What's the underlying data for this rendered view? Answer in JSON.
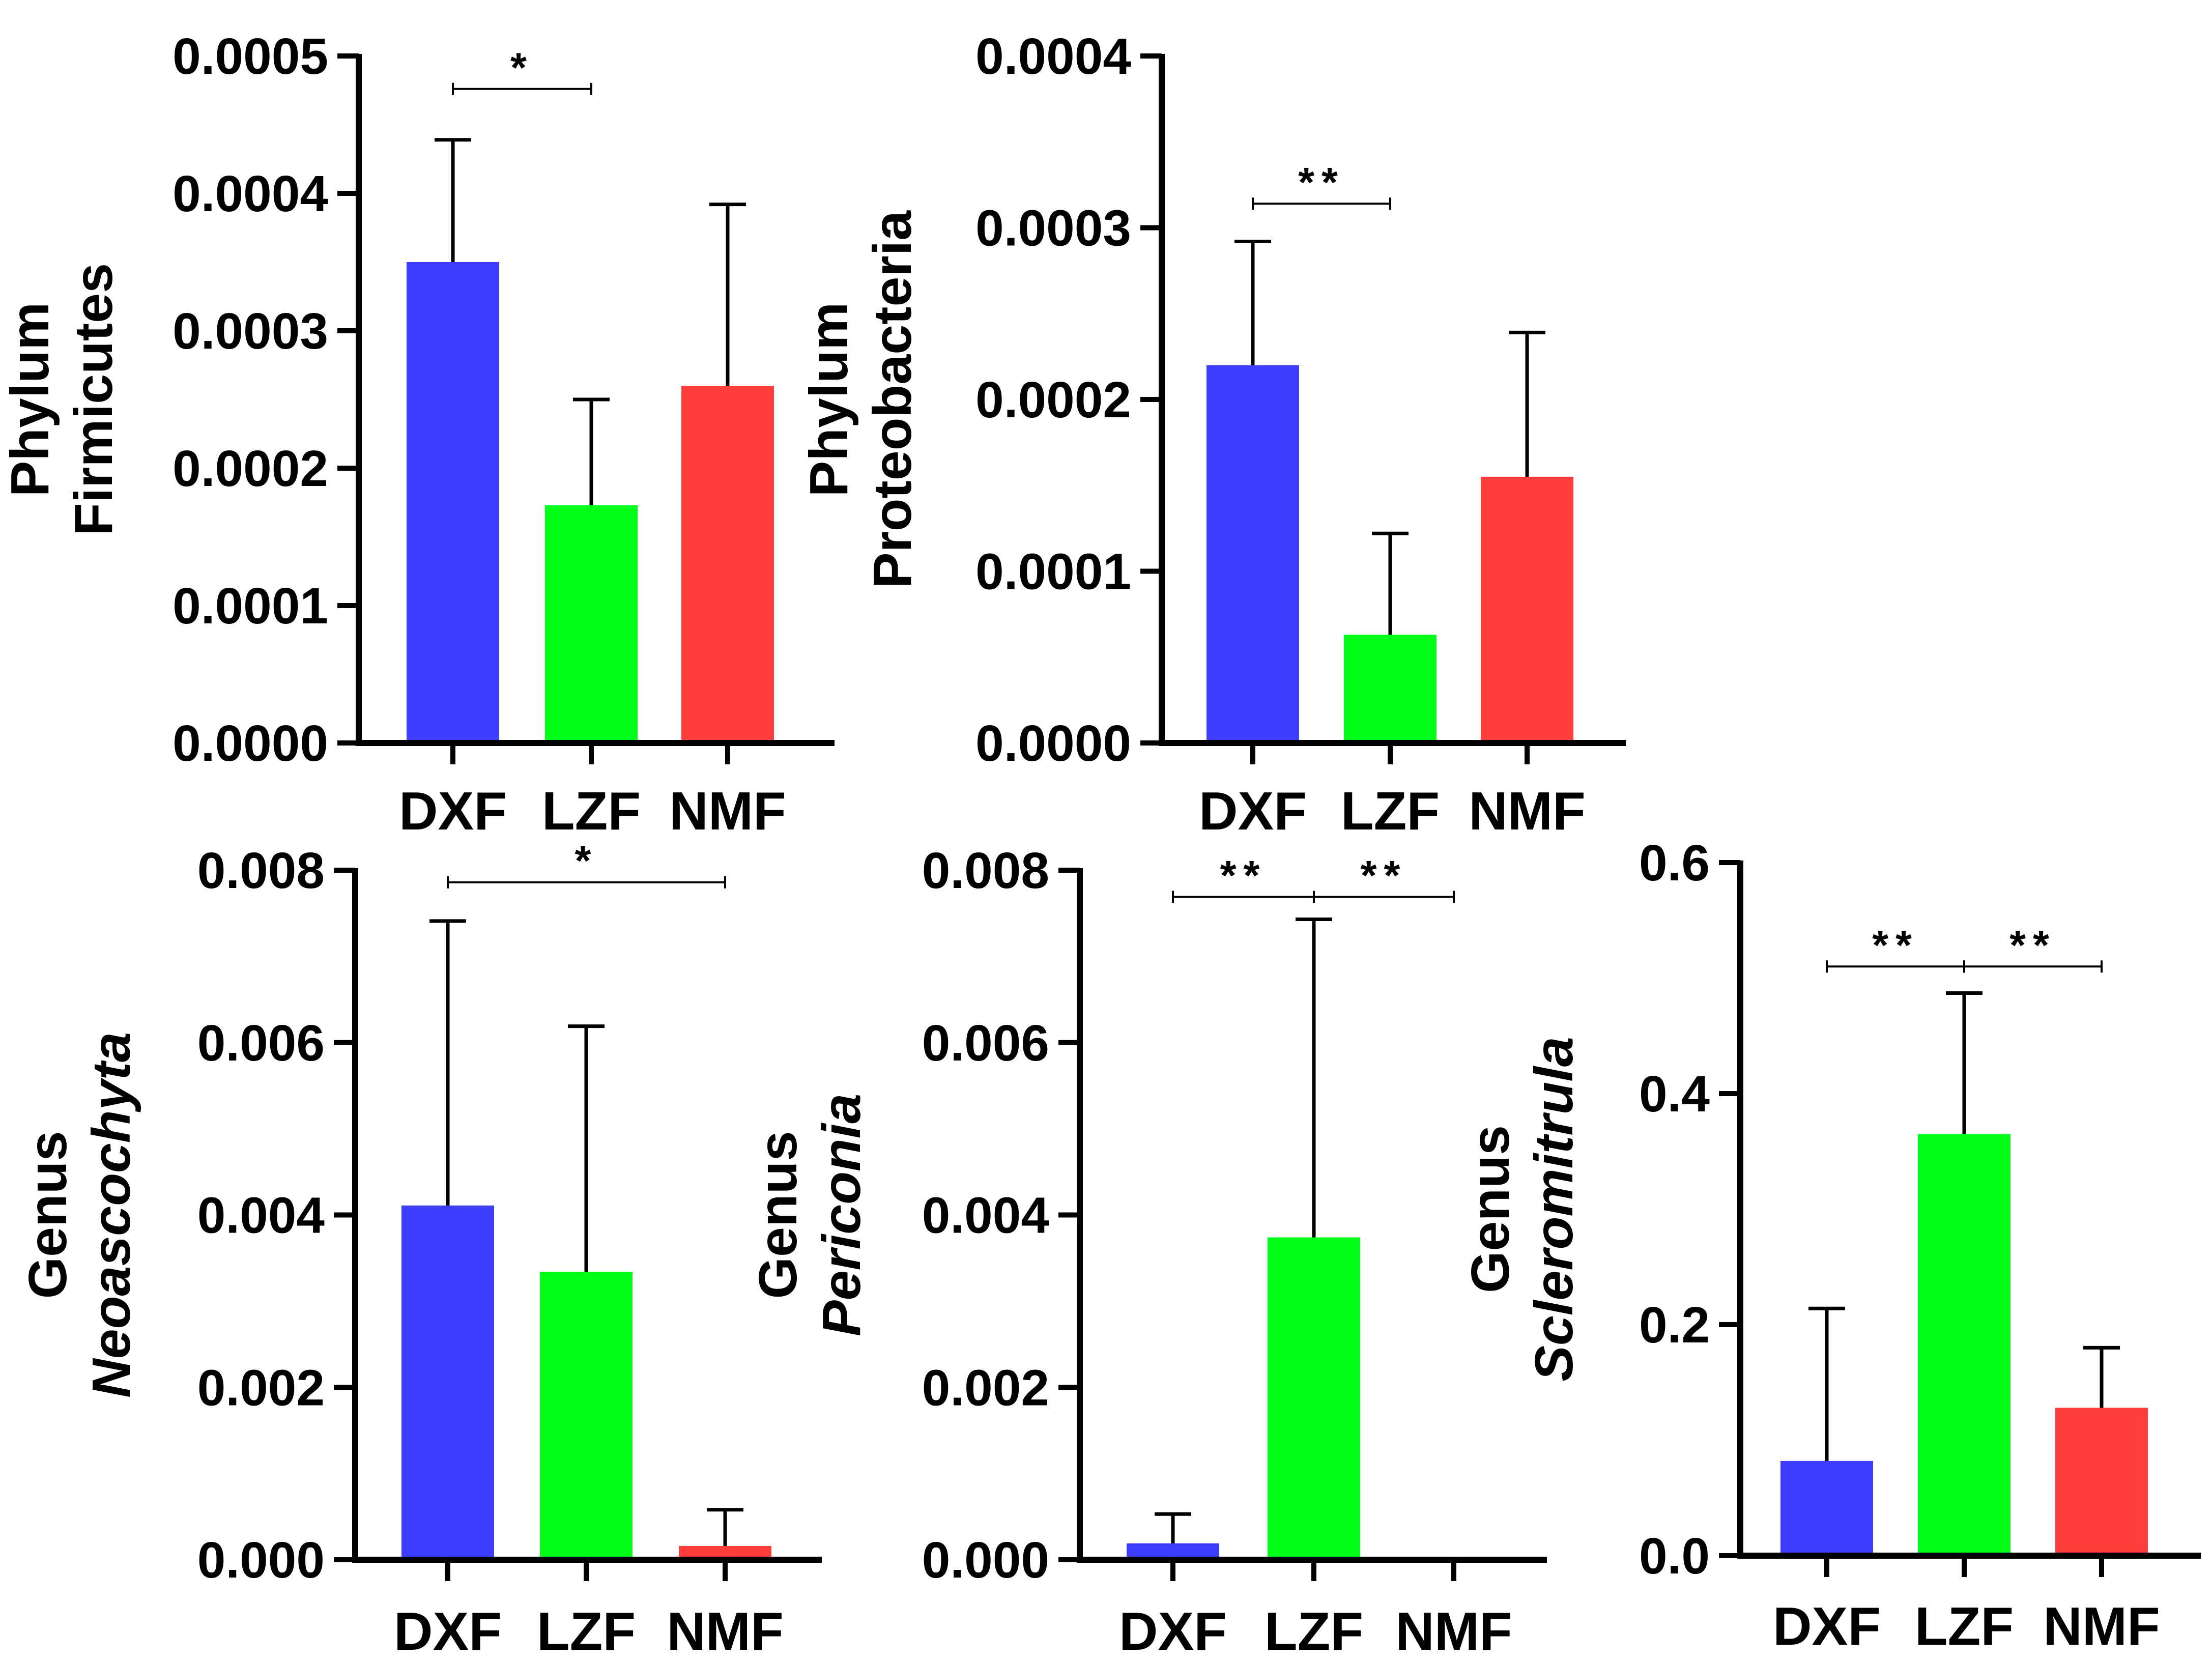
{
  "figure": {
    "colors": {
      "DXF": "#3d3dff",
      "LZF": "#00ff18",
      "NMF": "#ff3d3d",
      "axis": "#000000"
    }
  },
  "chart_data": [
    {
      "type": "bar",
      "title": "",
      "ylabel_line1": "Phylum",
      "ylabel_line2": "Firmicutes",
      "ylabel_line2_italic": false,
      "categories": [
        "DXF",
        "LZF",
        "NMF"
      ],
      "values": [
        0.00035,
        0.000173,
        0.00026
      ],
      "errors": [
        8.9e-05,
        7.7e-05,
        0.000132
      ],
      "ylim": [
        0,
        0.0005
      ],
      "ticks": [
        0,
        0.0001,
        0.0002,
        0.0003,
        0.0004,
        0.0005
      ],
      "tick_labels": [
        "0.0000",
        "0.0001",
        "0.0002",
        "0.0003",
        "0.0004",
        "0.0005"
      ],
      "significance": [
        {
          "from": "DXF",
          "to": "LZF",
          "level": 0.000476,
          "label": "*"
        }
      ]
    },
    {
      "type": "bar",
      "title": "",
      "ylabel_line1": "Phylum",
      "ylabel_line2": "Proteobacteria",
      "ylabel_line2_italic": false,
      "categories": [
        "DXF",
        "LZF",
        "NMF"
      ],
      "values": [
        0.00022,
        6.3e-05,
        0.000155
      ],
      "errors": [
        7.2e-05,
        5.9e-05,
        8.4e-05
      ],
      "ylim": [
        0,
        0.0004
      ],
      "ticks": [
        0,
        0.0001,
        0.0002,
        0.0003,
        0.0004
      ],
      "tick_labels": [
        "0.0000",
        "0.0001",
        "0.0002",
        "0.0003",
        "0.0004"
      ],
      "significance": [
        {
          "from": "DXF",
          "to": "LZF",
          "level": 0.000314,
          "label": "**"
        }
      ]
    },
    {
      "type": "bar",
      "title": "",
      "ylabel_line1": "Genus",
      "ylabel_line2": "Neoascochyta",
      "ylabel_line2_italic": true,
      "categories": [
        "DXF",
        "LZF",
        "NMF"
      ],
      "values": [
        0.00411,
        0.00334,
        0.00016
      ],
      "errors": [
        0.0033,
        0.00285,
        0.00042
      ],
      "ylim": [
        0,
        0.008
      ],
      "ticks": [
        0,
        0.002,
        0.004,
        0.006,
        0.008
      ],
      "tick_labels": [
        "0.000",
        "0.002",
        "0.004",
        "0.006",
        "0.008"
      ],
      "significance": [
        {
          "from": "DXF",
          "to": "NMF",
          "level": 0.00786,
          "label": "*"
        }
      ]
    },
    {
      "type": "bar",
      "title": "",
      "ylabel_line1": "Genus",
      "ylabel_line2": "Periconia",
      "ylabel_line2_italic": true,
      "categories": [
        "DXF",
        "LZF",
        "NMF"
      ],
      "values": [
        0.00019,
        0.00374,
        3e-05
      ],
      "errors": [
        0.00034,
        0.00369,
        0.0
      ],
      "ylim": [
        0,
        0.008
      ],
      "ticks": [
        0,
        0.002,
        0.004,
        0.006,
        0.008
      ],
      "tick_labels": [
        "0.000",
        "0.002",
        "0.004",
        "0.006",
        "0.008"
      ],
      "significance": [
        {
          "from": "DXF",
          "to": "LZF",
          "level": 0.00769,
          "label": "**"
        },
        {
          "from": "LZF",
          "to": "NMF",
          "level": 0.00769,
          "label": "**"
        }
      ]
    },
    {
      "type": "bar",
      "title": "",
      "ylabel_line1": "Genus",
      "ylabel_line2": "Scleromitrula",
      "ylabel_line2_italic": true,
      "categories": [
        "DXF",
        "LZF",
        "NMF"
      ],
      "values": [
        0.082,
        0.365,
        0.128
      ],
      "errors": [
        0.132,
        0.122,
        0.052
      ],
      "ylim": [
        0,
        0.6
      ],
      "ticks": [
        0,
        0.2,
        0.4,
        0.6
      ],
      "tick_labels": [
        "0.0",
        "0.2",
        "0.4",
        "0.6"
      ],
      "significance": [
        {
          "from": "DXF",
          "to": "LZF",
          "level": 0.51,
          "label": "**"
        },
        {
          "from": "LZF",
          "to": "NMF",
          "level": 0.51,
          "label": "**"
        }
      ]
    }
  ]
}
